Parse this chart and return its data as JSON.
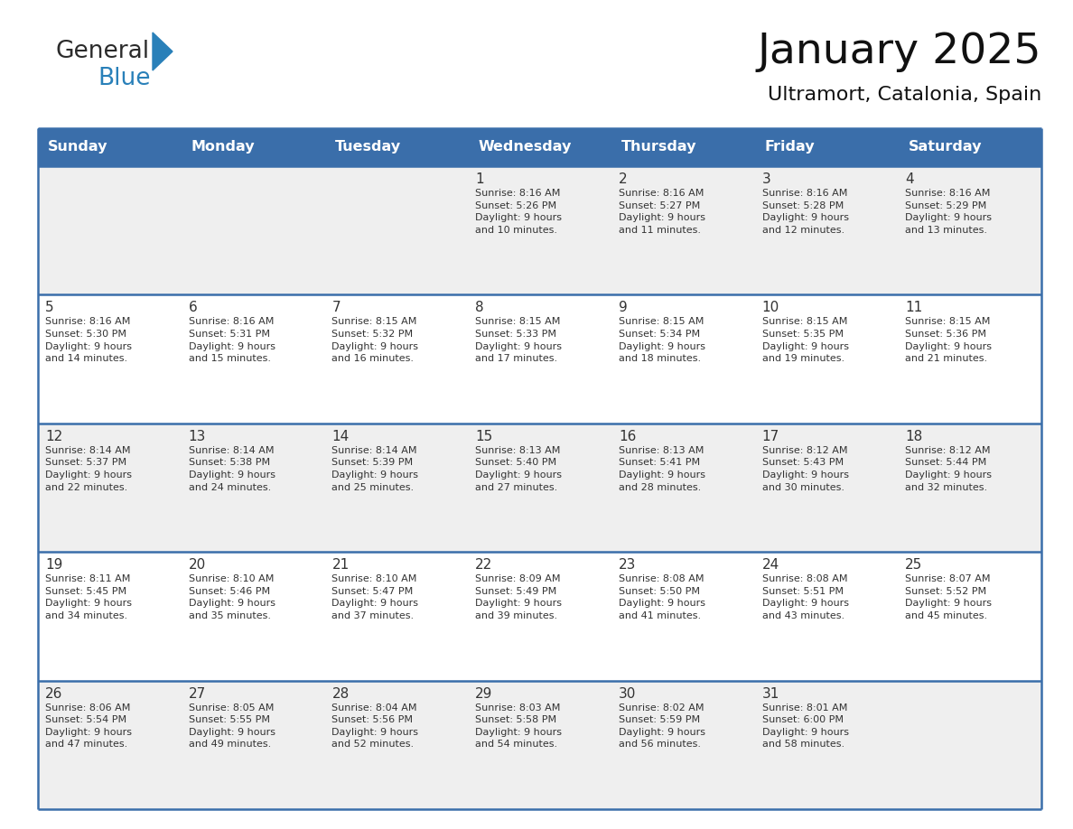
{
  "title": "January 2025",
  "subtitle": "Ultramort, Catalonia, Spain",
  "days_of_week": [
    "Sunday",
    "Monday",
    "Tuesday",
    "Wednesday",
    "Thursday",
    "Friday",
    "Saturday"
  ],
  "header_bg": "#3A6EAA",
  "header_text": "#FFFFFF",
  "row_bg_white": "#FFFFFF",
  "row_bg_gray": "#EFEFEF",
  "separator_color": "#3A6EAA",
  "text_color": "#333333",
  "calendar_data": [
    [
      "",
      "",
      "",
      "1\nSunrise: 8:16 AM\nSunset: 5:26 PM\nDaylight: 9 hours\nand 10 minutes.",
      "2\nSunrise: 8:16 AM\nSunset: 5:27 PM\nDaylight: 9 hours\nand 11 minutes.",
      "3\nSunrise: 8:16 AM\nSunset: 5:28 PM\nDaylight: 9 hours\nand 12 minutes.",
      "4\nSunrise: 8:16 AM\nSunset: 5:29 PM\nDaylight: 9 hours\nand 13 minutes."
    ],
    [
      "5\nSunrise: 8:16 AM\nSunset: 5:30 PM\nDaylight: 9 hours\nand 14 minutes.",
      "6\nSunrise: 8:16 AM\nSunset: 5:31 PM\nDaylight: 9 hours\nand 15 minutes.",
      "7\nSunrise: 8:15 AM\nSunset: 5:32 PM\nDaylight: 9 hours\nand 16 minutes.",
      "8\nSunrise: 8:15 AM\nSunset: 5:33 PM\nDaylight: 9 hours\nand 17 minutes.",
      "9\nSunrise: 8:15 AM\nSunset: 5:34 PM\nDaylight: 9 hours\nand 18 minutes.",
      "10\nSunrise: 8:15 AM\nSunset: 5:35 PM\nDaylight: 9 hours\nand 19 minutes.",
      "11\nSunrise: 8:15 AM\nSunset: 5:36 PM\nDaylight: 9 hours\nand 21 minutes."
    ],
    [
      "12\nSunrise: 8:14 AM\nSunset: 5:37 PM\nDaylight: 9 hours\nand 22 minutes.",
      "13\nSunrise: 8:14 AM\nSunset: 5:38 PM\nDaylight: 9 hours\nand 24 minutes.",
      "14\nSunrise: 8:14 AM\nSunset: 5:39 PM\nDaylight: 9 hours\nand 25 minutes.",
      "15\nSunrise: 8:13 AM\nSunset: 5:40 PM\nDaylight: 9 hours\nand 27 minutes.",
      "16\nSunrise: 8:13 AM\nSunset: 5:41 PM\nDaylight: 9 hours\nand 28 minutes.",
      "17\nSunrise: 8:12 AM\nSunset: 5:43 PM\nDaylight: 9 hours\nand 30 minutes.",
      "18\nSunrise: 8:12 AM\nSunset: 5:44 PM\nDaylight: 9 hours\nand 32 minutes."
    ],
    [
      "19\nSunrise: 8:11 AM\nSunset: 5:45 PM\nDaylight: 9 hours\nand 34 minutes.",
      "20\nSunrise: 8:10 AM\nSunset: 5:46 PM\nDaylight: 9 hours\nand 35 minutes.",
      "21\nSunrise: 8:10 AM\nSunset: 5:47 PM\nDaylight: 9 hours\nand 37 minutes.",
      "22\nSunrise: 8:09 AM\nSunset: 5:49 PM\nDaylight: 9 hours\nand 39 minutes.",
      "23\nSunrise: 8:08 AM\nSunset: 5:50 PM\nDaylight: 9 hours\nand 41 minutes.",
      "24\nSunrise: 8:08 AM\nSunset: 5:51 PM\nDaylight: 9 hours\nand 43 minutes.",
      "25\nSunrise: 8:07 AM\nSunset: 5:52 PM\nDaylight: 9 hours\nand 45 minutes."
    ],
    [
      "26\nSunrise: 8:06 AM\nSunset: 5:54 PM\nDaylight: 9 hours\nand 47 minutes.",
      "27\nSunrise: 8:05 AM\nSunset: 5:55 PM\nDaylight: 9 hours\nand 49 minutes.",
      "28\nSunrise: 8:04 AM\nSunset: 5:56 PM\nDaylight: 9 hours\nand 52 minutes.",
      "29\nSunrise: 8:03 AM\nSunset: 5:58 PM\nDaylight: 9 hours\nand 54 minutes.",
      "30\nSunrise: 8:02 AM\nSunset: 5:59 PM\nDaylight: 9 hours\nand 56 minutes.",
      "31\nSunrise: 8:01 AM\nSunset: 6:00 PM\nDaylight: 9 hours\nand 58 minutes.",
      ""
    ]
  ],
  "logo_general_color": "#2b2b2b",
  "logo_blue_color": "#2980B9",
  "logo_triangle_color": "#2980B9",
  "fig_width": 11.88,
  "fig_height": 9.18,
  "dpi": 100
}
